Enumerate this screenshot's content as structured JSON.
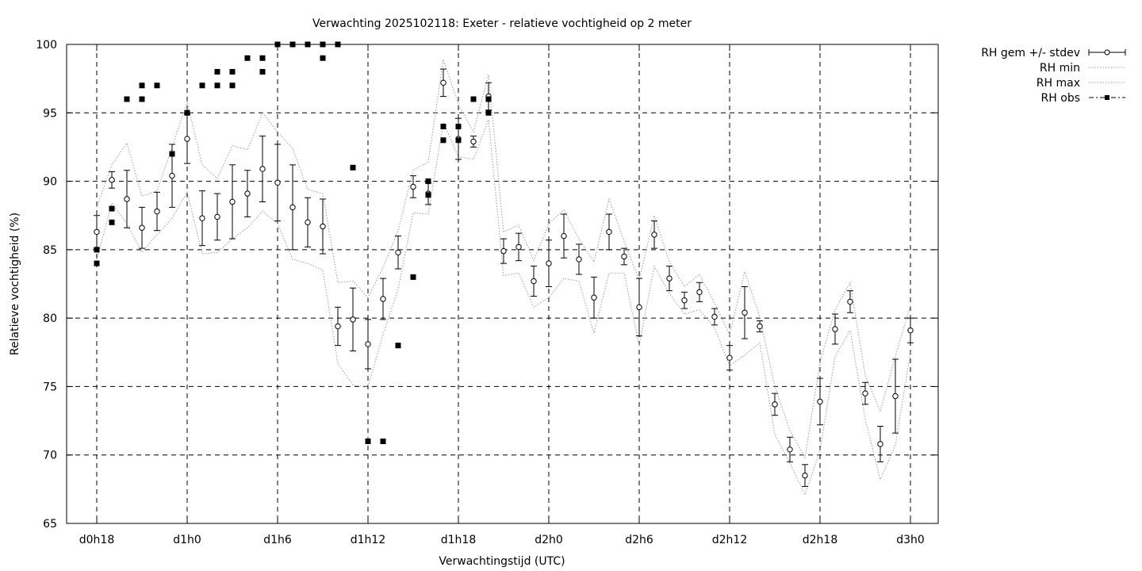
{
  "chart_data": {
    "type": "scatter",
    "title": "Verwachting 2025102118: Exeter - relatieve vochtigheid op 2 meter",
    "xlabel": "Verwachtingstijd (UTC)",
    "ylabel": "Relatieve vochtigheid (%)",
    "xlim": [
      18,
      75.8
    ],
    "ylim": [
      65,
      100
    ],
    "grid": true,
    "legend_position": "outside-top-right",
    "x_ticks": [
      {
        "value": 18,
        "label": "d0h18"
      },
      {
        "value": 24,
        "label": "d1h0"
      },
      {
        "value": 30,
        "label": "d1h6"
      },
      {
        "value": 36,
        "label": "d1h12"
      },
      {
        "value": 42,
        "label": "d1h18"
      },
      {
        "value": 48,
        "label": "d2h0"
      },
      {
        "value": 54,
        "label": "d2h6"
      },
      {
        "value": 60,
        "label": "d2h12"
      },
      {
        "value": 66,
        "label": "d2h18"
      },
      {
        "value": 72,
        "label": "d3h0"
      }
    ],
    "y_ticks": [
      65,
      70,
      75,
      80,
      85,
      90,
      95,
      100
    ],
    "legend": [
      {
        "label": "RH gem +/- stdev",
        "style": "errorbar-circle"
      },
      {
        "label": "RH min",
        "style": "dotted"
      },
      {
        "label": "RH max",
        "style": "dotted"
      },
      {
        "label": "RH obs",
        "style": "dashdot-square"
      }
    ],
    "series": [
      {
        "name": "RH gem +/- stdev",
        "x": [
          18,
          19,
          20,
          21,
          22,
          23,
          24,
          25,
          26,
          27,
          28,
          29,
          30,
          31,
          32,
          33,
          34,
          35,
          36,
          37,
          38,
          39,
          40,
          41,
          42,
          43,
          44,
          45,
          46,
          47,
          48,
          49,
          50,
          51,
          52,
          53,
          54,
          55,
          56,
          57,
          58,
          59,
          60,
          61,
          62,
          63,
          64,
          65,
          66,
          67,
          68,
          69,
          70,
          71,
          72
        ],
        "mean": [
          86.3,
          90.1,
          88.7,
          86.6,
          87.8,
          90.4,
          93.1,
          87.3,
          87.4,
          88.5,
          89.1,
          90.9,
          89.9,
          88.1,
          87.0,
          86.7,
          79.4,
          79.9,
          78.1,
          81.4,
          84.8,
          89.6,
          89.1,
          97.2,
          93.1,
          92.9,
          96.2,
          84.9,
          85.2,
          82.7,
          84.0,
          86.0,
          84.3,
          81.5,
          86.3,
          84.5,
          80.8,
          86.1,
          82.9,
          81.3,
          81.9,
          80.1,
          77.1,
          80.4,
          79.4,
          73.7,
          70.4,
          68.5,
          73.9,
          79.2,
          81.2,
          74.5,
          70.8,
          74.3,
          79.1
        ],
        "stdev": [
          1.2,
          0.6,
          2.1,
          1.5,
          1.4,
          2.3,
          1.8,
          2.0,
          1.7,
          2.7,
          1.7,
          2.4,
          2.8,
          3.1,
          1.8,
          2.0,
          1.4,
          2.3,
          1.8,
          1.5,
          1.2,
          0.8,
          0.8,
          1.0,
          1.5,
          0.4,
          1.0,
          0.9,
          1.0,
          1.1,
          1.7,
          1.6,
          1.1,
          1.5,
          1.3,
          0.6,
          2.1,
          1.0,
          0.9,
          0.6,
          0.7,
          0.6,
          0.9,
          1.9,
          0.4,
          0.8,
          0.9,
          0.8,
          1.7,
          1.1,
          0.8,
          0.8,
          1.3,
          2.7,
          0.9
        ]
      },
      {
        "name": "RH min",
        "x": [
          18,
          19,
          20,
          21,
          22,
          23,
          24,
          25,
          26,
          27,
          28,
          29,
          30,
          31,
          32,
          33,
          34,
          35,
          36,
          37,
          38,
          39,
          40,
          41,
          42,
          43,
          44,
          45,
          46,
          47,
          48,
          49,
          50,
          51,
          52,
          53,
          54,
          55,
          56,
          57,
          58,
          59,
          60,
          61,
          62,
          63,
          64,
          65,
          66,
          67,
          68,
          69,
          70,
          71,
          72
        ],
        "values": [
          84.3,
          88.4,
          86.9,
          84.8,
          86.1,
          87.3,
          89.2,
          84.7,
          84.8,
          85.8,
          86.6,
          87.8,
          86.9,
          84.3,
          84.0,
          83.5,
          76.7,
          75.1,
          75.0,
          78.8,
          82.1,
          87.7,
          87.6,
          94.3,
          91.8,
          91.6,
          94.5,
          83.1,
          83.3,
          80.8,
          81.5,
          82.9,
          82.7,
          78.9,
          83.3,
          83.3,
          78.0,
          83.8,
          81.8,
          80.3,
          80.6,
          79.3,
          76.5,
          77.3,
          78.2,
          71.5,
          69.4,
          67.1,
          70.3,
          77.2,
          79.1,
          72.6,
          68.2,
          70.7,
          77.5
        ]
      },
      {
        "name": "RH max",
        "x": [
          18,
          19,
          20,
          21,
          22,
          23,
          24,
          25,
          26,
          27,
          28,
          29,
          30,
          31,
          32,
          33,
          34,
          35,
          36,
          37,
          38,
          39,
          40,
          41,
          42,
          43,
          44,
          45,
          46,
          47,
          48,
          49,
          50,
          51,
          52,
          53,
          54,
          55,
          56,
          57,
          58,
          59,
          60,
          61,
          62,
          63,
          64,
          65,
          66,
          67,
          68,
          69,
          70,
          71,
          72
        ],
        "values": [
          88.1,
          91.2,
          92.8,
          88.9,
          89.3,
          92.5,
          95.8,
          91.2,
          90.2,
          92.6,
          92.3,
          95.0,
          93.6,
          92.4,
          89.4,
          89.1,
          82.6,
          82.7,
          81.5,
          83.7,
          86.4,
          90.8,
          91.4,
          98.9,
          95.6,
          93.6,
          97.8,
          86.3,
          86.8,
          84.2,
          86.9,
          87.9,
          85.8,
          84.1,
          88.7,
          85.6,
          82.8,
          87.5,
          84.1,
          82.3,
          83.2,
          81.1,
          78.8,
          83.4,
          80.1,
          75.0,
          71.8,
          69.8,
          76.8,
          80.6,
          82.6,
          75.8,
          73.2,
          77.2,
          80.9
        ]
      },
      {
        "name": "RH obs",
        "points": [
          [
            18,
            85
          ],
          [
            18,
            84
          ],
          [
            19,
            88
          ],
          [
            19,
            87
          ],
          [
            20,
            96
          ],
          [
            21,
            97
          ],
          [
            21,
            96
          ],
          [
            22,
            97
          ],
          [
            23,
            92
          ],
          [
            24,
            95
          ],
          [
            25,
            97
          ],
          [
            26,
            98
          ],
          [
            26,
            97
          ],
          [
            27,
            98
          ],
          [
            27,
            97
          ],
          [
            28,
            99
          ],
          [
            29,
            99
          ],
          [
            29,
            98
          ],
          [
            30,
            100
          ],
          [
            31,
            100
          ],
          [
            32,
            100
          ],
          [
            33,
            100
          ],
          [
            33,
            99
          ],
          [
            34,
            100
          ],
          [
            35,
            91
          ],
          [
            36,
            71
          ],
          [
            37,
            71
          ],
          [
            38,
            78
          ],
          [
            39,
            83
          ],
          [
            40,
            90
          ],
          [
            40,
            89
          ],
          [
            41,
            94
          ],
          [
            41,
            93
          ],
          [
            42,
            94
          ],
          [
            42,
            93
          ],
          [
            43,
            96
          ],
          [
            44,
            96
          ],
          [
            44,
            95
          ]
        ]
      }
    ]
  }
}
